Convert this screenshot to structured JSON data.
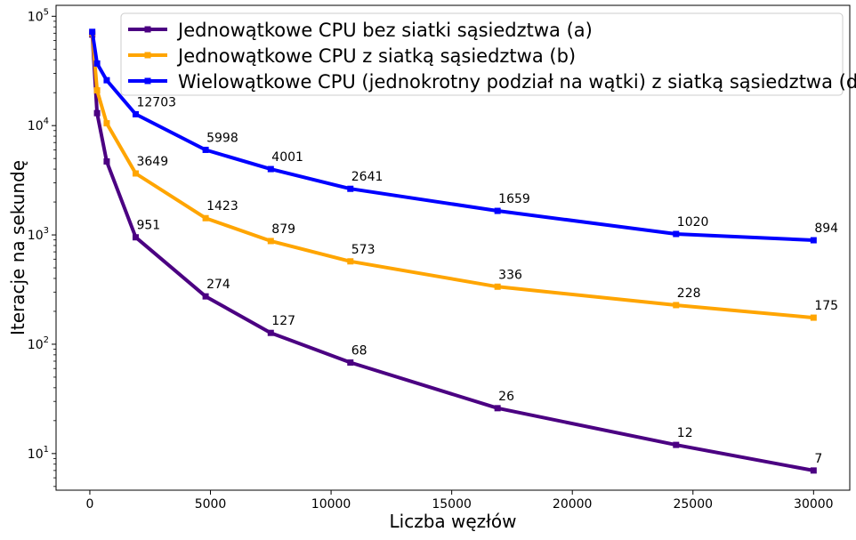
{
  "chart_data": {
    "type": "line",
    "title": "",
    "xlabel": "Liczba węzłów",
    "ylabel": "Iteracje na sekundę",
    "yscale": "log",
    "xlim": [
      -1400,
      31500
    ],
    "ylim_exponent": [
      0.665,
      5.1
    ],
    "grid": false,
    "legend_position": "top-right",
    "x_ticks": [
      0,
      5000,
      10000,
      15000,
      20000,
      25000,
      30000
    ],
    "x_tick_labels": [
      "0",
      "5000",
      "10000",
      "15000",
      "20000",
      "25000",
      "30000"
    ],
    "y_ticks_exponent": [
      1,
      2,
      3,
      4,
      5
    ],
    "y_tick_labels": [
      "10",
      "10",
      "10",
      "10",
      "10"
    ],
    "y_tick_superscripts": [
      "1",
      "2",
      "3",
      "4",
      "5"
    ],
    "x": [
      100,
      300,
      700,
      1900,
      4800,
      7500,
      10800,
      16900,
      24300,
      30000
    ],
    "series": [
      {
        "name": "Jednowątkowe CPU bez siatki sąsiedztwa (a)",
        "color": "#4b0082",
        "values": [
          68000,
          13000,
          4700,
          951,
          274,
          127,
          68,
          26,
          12,
          7
        ],
        "labels": [
          "",
          "",
          "",
          "951",
          "274",
          "127",
          "68",
          "26",
          "12",
          "7"
        ]
      },
      {
        "name": "Jednowątkowe CPU z siatką sąsiedztwa (b)",
        "color": "#ffa500",
        "values": [
          70000,
          21000,
          10500,
          3649,
          1423,
          879,
          573,
          336,
          228,
          175
        ],
        "labels": [
          "",
          "",
          "",
          "3649",
          "1423",
          "879",
          "573",
          "336",
          "228",
          "175"
        ]
      },
      {
        "name": "Wielowątkowe CPU (jednokrotny podział na wątki) z siatką sąsiedztwa (d)",
        "color": "#0000ff",
        "values": [
          72000,
          37000,
          26000,
          12703,
          5998,
          4001,
          2641,
          1659,
          1020,
          894
        ],
        "labels": [
          "",
          "",
          "",
          "12703",
          "5998",
          "4001",
          "2641",
          "1659",
          "1020",
          "894"
        ]
      }
    ]
  }
}
